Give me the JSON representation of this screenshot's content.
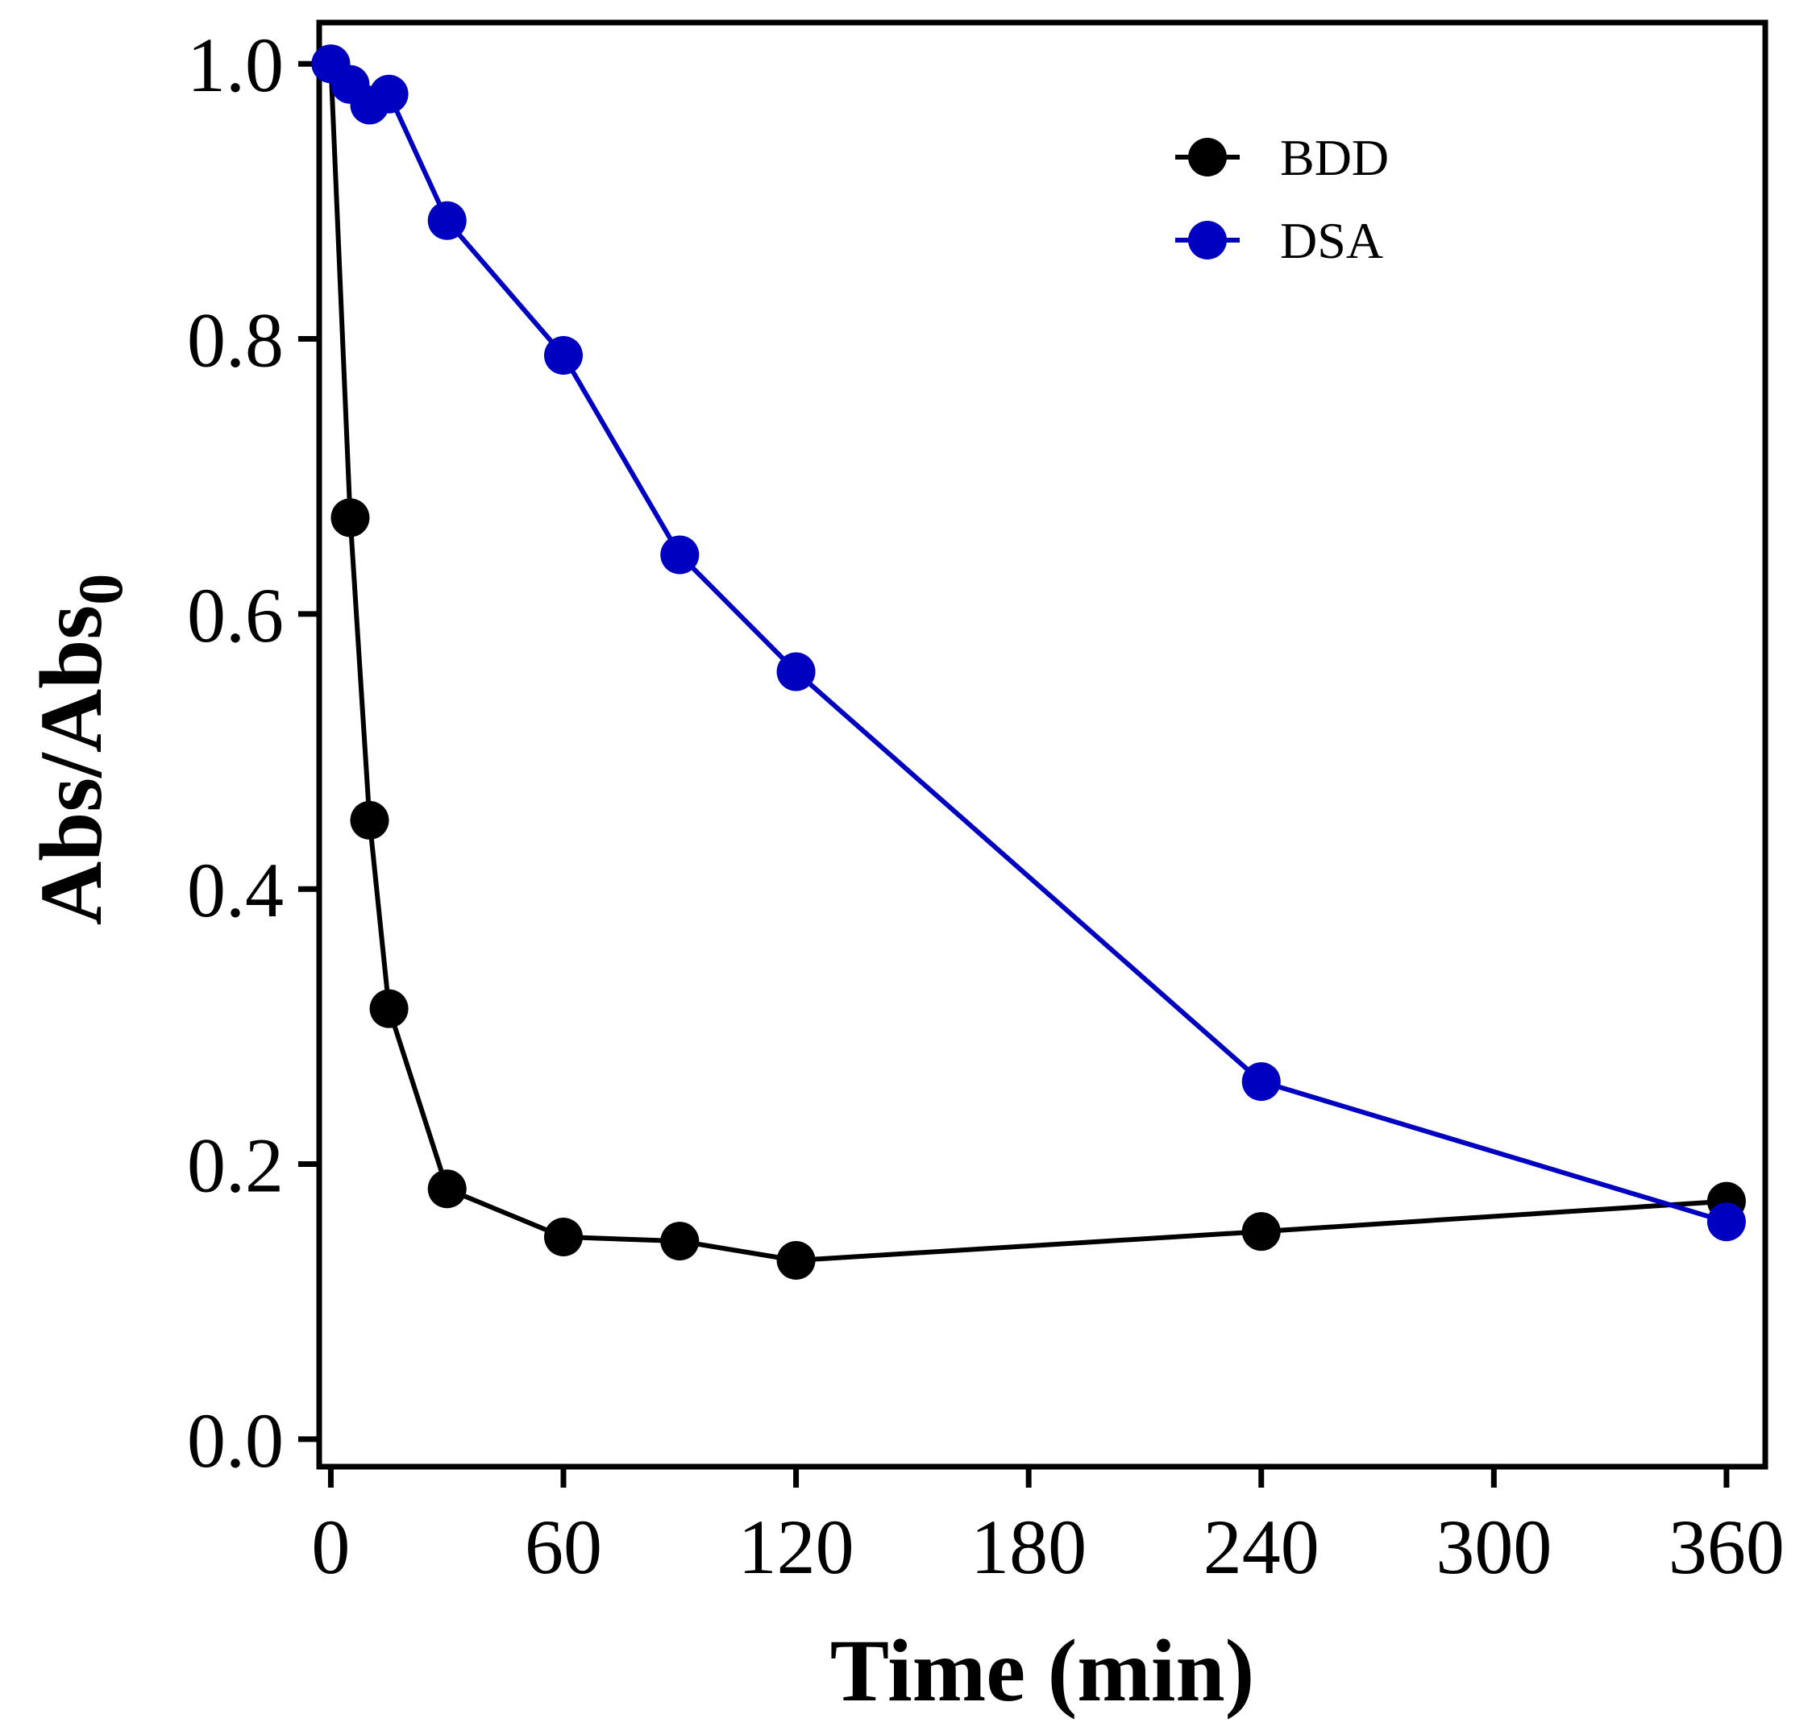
{
  "chart_data": {
    "type": "line",
    "title": "",
    "xlabel": "Time (min)",
    "ylabel": {
      "main": "Abs/Abs",
      "subscript": "0"
    },
    "xlim": [
      -3,
      370
    ],
    "ylim": [
      -0.02,
      1.03
    ],
    "x_ticks": [
      0,
      60,
      120,
      180,
      240,
      300,
      360
    ],
    "x_tick_labels": [
      "0",
      "60",
      "120",
      "180",
      "240",
      "300",
      "360"
    ],
    "y_ticks": [
      0.0,
      0.2,
      0.4,
      0.6,
      0.8,
      1.0
    ],
    "y_tick_labels": [
      "0.0",
      "0.2",
      "0.4",
      "0.6",
      "0.8",
      "1.0"
    ],
    "grid": false,
    "legend_position": "top-right",
    "series": [
      {
        "name": "BDD",
        "color": "#000000",
        "x": [
          0,
          5,
          10,
          15,
          30,
          60,
          90,
          120,
          240,
          360
        ],
        "y": [
          1.0,
          0.67,
          0.45,
          0.313,
          0.182,
          0.147,
          0.144,
          0.13,
          0.151,
          0.173
        ]
      },
      {
        "name": "DSA",
        "color": "#0000c0",
        "x": [
          0,
          5,
          10,
          15,
          30,
          60,
          90,
          120,
          240,
          360
        ],
        "y": [
          1.0,
          0.985,
          0.97,
          0.978,
          0.886,
          0.788,
          0.643,
          0.558,
          0.26,
          0.158
        ]
      }
    ]
  }
}
